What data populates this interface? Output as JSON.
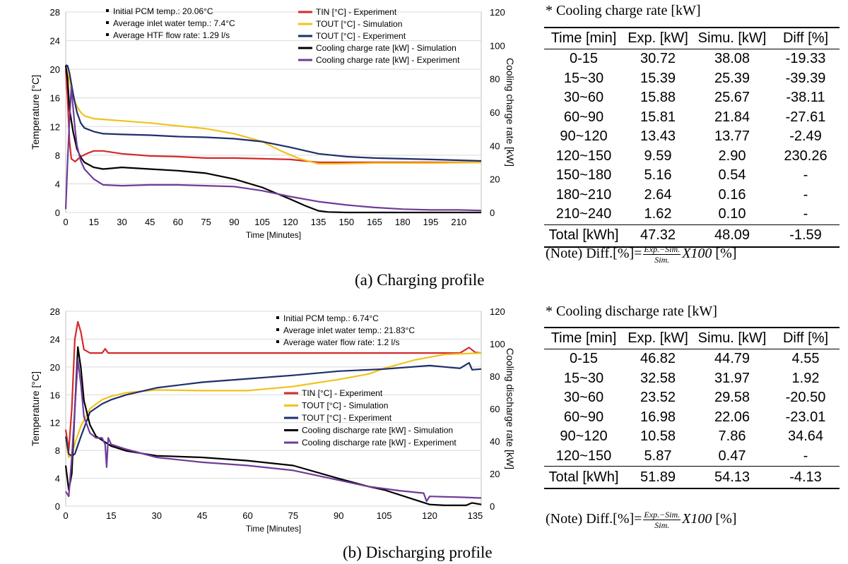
{
  "chart_data": [
    {
      "type": "line",
      "caption": "(a) Charging profile",
      "xlabel": "Time [Minutes]",
      "ylabel": "Temperature [°C]",
      "y2label": "Cooling charge rate [kW]",
      "xticks": [
        "0",
        "15",
        "30",
        "45",
        "60",
        "75",
        "90",
        "105",
        "120",
        "135",
        "150",
        "165",
        "180",
        "195",
        "210"
      ],
      "yticks": [
        "0",
        "4",
        "8",
        "12",
        "16",
        "20",
        "24",
        "28"
      ],
      "y2ticks": [
        "0",
        "20",
        "40",
        "60",
        "80",
        "100",
        "120"
      ],
      "xlim": [
        0,
        222
      ],
      "ylim": [
        0,
        28
      ],
      "y2lim": [
        0,
        120
      ],
      "info": [
        "Initial PCM temp.: 20.06°C",
        "Average inlet water temp.: 7.4°C",
        "Average HTF flow rate: 1.29 l/s"
      ],
      "series": [
        {
          "name": "TIN [°C] - Experiment",
          "color": "#d42a2a",
          "axis": "left",
          "points": [
            [
              0,
              20
            ],
            [
              1,
              16
            ],
            [
              2,
              10
            ],
            [
              3,
              7.5
            ],
            [
              5,
              7.1
            ],
            [
              8,
              7.8
            ],
            [
              12,
              8.3
            ],
            [
              15,
              8.6
            ],
            [
              20,
              8.6
            ],
            [
              25,
              8.4
            ],
            [
              30,
              8.2
            ],
            [
              45,
              7.9
            ],
            [
              60,
              7.8
            ],
            [
              75,
              7.6
            ],
            [
              90,
              7.6
            ],
            [
              105,
              7.5
            ],
            [
              120,
              7.4
            ],
            [
              135,
              7.0
            ],
            [
              150,
              7.0
            ],
            [
              165,
              7.0
            ],
            [
              180,
              7.0
            ],
            [
              195,
              7.0
            ],
            [
              210,
              7.0
            ],
            [
              222,
              7.0
            ]
          ]
        },
        {
          "name": "TOUT [°C] - Simulation",
          "color": "#f2c21b",
          "axis": "left",
          "points": [
            [
              0,
              20.4
            ],
            [
              2,
              18.5
            ],
            [
              4,
              16
            ],
            [
              6,
              14.8
            ],
            [
              8,
              14
            ],
            [
              10,
              13.5
            ],
            [
              15,
              13.1
            ],
            [
              20,
              13
            ],
            [
              30,
              12.8
            ],
            [
              45,
              12.5
            ],
            [
              60,
              12.1
            ],
            [
              75,
              11.7
            ],
            [
              90,
              11.0
            ],
            [
              105,
              9.9
            ],
            [
              115,
              8.6
            ],
            [
              125,
              7.5
            ],
            [
              135,
              6.8
            ],
            [
              145,
              6.8
            ],
            [
              165,
              6.9
            ],
            [
              195,
              6.9
            ],
            [
              222,
              7.0
            ]
          ]
        },
        {
          "name": "TOUT [°C] - Experiment",
          "color": "#1f2f6b",
          "axis": "left",
          "points": [
            [
              0,
              20.6
            ],
            [
              1,
              20.5
            ],
            [
              2,
              19.5
            ],
            [
              4,
              16.5
            ],
            [
              6,
              14
            ],
            [
              8,
              12.5
            ],
            [
              10,
              11.8
            ],
            [
              15,
              11.3
            ],
            [
              20,
              11
            ],
            [
              30,
              10.9
            ],
            [
              45,
              10.8
            ],
            [
              60,
              10.6
            ],
            [
              75,
              10.5
            ],
            [
              90,
              10.3
            ],
            [
              105,
              9.9
            ],
            [
              120,
              9.1
            ],
            [
              135,
              8.2
            ],
            [
              150,
              7.8
            ],
            [
              165,
              7.6
            ],
            [
              180,
              7.5
            ],
            [
              195,
              7.4
            ],
            [
              210,
              7.3
            ],
            [
              222,
              7.2
            ]
          ]
        },
        {
          "name": "Cooling charge rate [kW] - Simulation",
          "color": "#000000",
          "axis": "right",
          "points": [
            [
              0,
              88
            ],
            [
              1,
              80
            ],
            [
              2,
              62
            ],
            [
              4,
              48
            ],
            [
              6,
              38
            ],
            [
              8,
              33
            ],
            [
              10,
              30
            ],
            [
              15,
              27
            ],
            [
              20,
              26
            ],
            [
              30,
              27
            ],
            [
              45,
              26
            ],
            [
              60,
              25
            ],
            [
              75,
              23.5
            ],
            [
              90,
              20
            ],
            [
              105,
              15
            ],
            [
              120,
              8
            ],
            [
              128,
              4
            ],
            [
              135,
              1
            ],
            [
              140,
              0.3
            ],
            [
              150,
              0
            ],
            [
              222,
              0
            ]
          ]
        },
        {
          "name": "Cooling charge rate [kW] - Experiment",
          "color": "#6f3c99",
          "axis": "right",
          "points": [
            [
              0,
              2
            ],
            [
              1,
              30
            ],
            [
              2,
              55
            ],
            [
              3,
              75
            ],
            [
              4,
              62
            ],
            [
              5,
              50
            ],
            [
              6,
              40
            ],
            [
              8,
              31
            ],
            [
              10,
              26
            ],
            [
              15,
              20
            ],
            [
              20,
              16.5
            ],
            [
              30,
              16
            ],
            [
              45,
              16.5
            ],
            [
              60,
              16.5
            ],
            [
              75,
              16
            ],
            [
              90,
              15.5
            ],
            [
              105,
              13
            ],
            [
              120,
              9.5
            ],
            [
              135,
              6.5
            ],
            [
              150,
              4.5
            ],
            [
              165,
              3
            ],
            [
              180,
              2
            ],
            [
              195,
              1.5
            ],
            [
              210,
              1.5
            ],
            [
              222,
              1.2
            ]
          ]
        }
      ]
    },
    {
      "type": "line",
      "caption": "(b) Discharging profile",
      "xlabel": "Time [Minutes]",
      "ylabel": "Temperature [°C]",
      "y2label": "Cooling discharge rate [kW]",
      "xticks": [
        "0",
        "15",
        "30",
        "45",
        "60",
        "75",
        "90",
        "105",
        "120",
        "135"
      ],
      "yticks": [
        "0",
        "4",
        "8",
        "12",
        "16",
        "20",
        "24",
        "28"
      ],
      "y2ticks": [
        "0",
        "20",
        "40",
        "60",
        "80",
        "100",
        "120"
      ],
      "xlim": [
        0,
        137
      ],
      "ylim": [
        0,
        28
      ],
      "y2lim": [
        0,
        120
      ],
      "info": [
        "Initial PCM temp.: 6.74°C",
        "Average inlet water temp.: 21.83°C",
        "Average water flow rate: 1.2 l/s"
      ],
      "series": [
        {
          "name": "TIN [°C] - Experiment",
          "color": "#d42a2a",
          "axis": "left",
          "points": [
            [
              0,
              11
            ],
            [
              1,
              8
            ],
            [
              2,
              14
            ],
            [
              3,
              24
            ],
            [
              4,
              26.5
            ],
            [
              5,
              25
            ],
            [
              6,
              22.5
            ],
            [
              8,
              22
            ],
            [
              12,
              22
            ],
            [
              13,
              22.6
            ],
            [
              14,
              22
            ],
            [
              20,
              22
            ],
            [
              45,
              22
            ],
            [
              75,
              22
            ],
            [
              105,
              22
            ],
            [
              130,
              22
            ],
            [
              133,
              22.8
            ],
            [
              135,
              22.1
            ],
            [
              137,
              22
            ]
          ]
        },
        {
          "name": "TOUT [°C] - Simulation",
          "color": "#f2c21b",
          "axis": "left",
          "points": [
            [
              0,
              9.5
            ],
            [
              1,
              7
            ],
            [
              2,
              7.5
            ],
            [
              3,
              9
            ],
            [
              5,
              11.5
            ],
            [
              8,
              14
            ],
            [
              12,
              15.3
            ],
            [
              15,
              15.8
            ],
            [
              20,
              16.3
            ],
            [
              30,
              16.7
            ],
            [
              45,
              16.6
            ],
            [
              60,
              16.6
            ],
            [
              75,
              17.2
            ],
            [
              90,
              18.2
            ],
            [
              100,
              19
            ],
            [
              105,
              19.8
            ],
            [
              115,
              21
            ],
            [
              125,
              21.8
            ],
            [
              137,
              22
            ]
          ]
        },
        {
          "name": "TOUT [°C] - Experiment",
          "color": "#1f2f6b",
          "axis": "left",
          "points": [
            [
              0,
              10
            ],
            [
              1,
              7.5
            ],
            [
              2,
              7.2
            ],
            [
              3,
              7.5
            ],
            [
              5,
              10
            ],
            [
              8,
              13.5
            ],
            [
              12,
              14.7
            ],
            [
              15,
              15.3
            ],
            [
              20,
              16
            ],
            [
              30,
              17
            ],
            [
              45,
              17.8
            ],
            [
              60,
              18.3
            ],
            [
              75,
              18.8
            ],
            [
              90,
              19.4
            ],
            [
              105,
              19.7
            ],
            [
              120,
              20.2
            ],
            [
              130,
              19.8
            ],
            [
              133,
              20.6
            ],
            [
              134,
              19.6
            ],
            [
              137,
              19.7
            ]
          ]
        },
        {
          "name": "Cooling discharge rate [kW] - Simulation",
          "color": "#000000",
          "axis": "right",
          "points": [
            [
              0,
              25
            ],
            [
              1,
              10
            ],
            [
              2,
              20
            ],
            [
              3,
              60
            ],
            [
              4,
              98
            ],
            [
              5,
              85
            ],
            [
              6,
              65
            ],
            [
              8,
              50
            ],
            [
              10,
              43
            ],
            [
              15,
              37
            ],
            [
              20,
              34
            ],
            [
              30,
              31
            ],
            [
              45,
              30
            ],
            [
              60,
              28
            ],
            [
              75,
              25
            ],
            [
              90,
              17
            ],
            [
              100,
              12
            ],
            [
              105,
              10
            ],
            [
              115,
              4
            ],
            [
              120,
              1
            ],
            [
              125,
              0.5
            ],
            [
              132,
              0.5
            ],
            [
              134,
              2
            ],
            [
              137,
              1
            ]
          ]
        },
        {
          "name": "Cooling discharge rate [kW] - Experiment",
          "color": "#6f3c99",
          "axis": "right",
          "points": [
            [
              0,
              9
            ],
            [
              1,
              6
            ],
            [
              2,
              30
            ],
            [
              3,
              60
            ],
            [
              4,
              90
            ],
            [
              5,
              75
            ],
            [
              6,
              55
            ],
            [
              8,
              45
            ],
            [
              10,
              42
            ],
            [
              12,
              42
            ],
            [
              13,
              38
            ],
            [
              13.5,
              24
            ],
            [
              14,
              42
            ],
            [
              15,
              38
            ],
            [
              20,
              35
            ],
            [
              30,
              30
            ],
            [
              45,
              27
            ],
            [
              60,
              25
            ],
            [
              75,
              22
            ],
            [
              90,
              16
            ],
            [
              100,
              12
            ],
            [
              110,
              9.5
            ],
            [
              118,
              8
            ],
            [
              119,
              3
            ],
            [
              120,
              6
            ],
            [
              130,
              5.5
            ],
            [
              137,
              5
            ]
          ]
        }
      ]
    }
  ],
  "charge_table": {
    "title": "* Cooling charge rate [kW]",
    "headers": [
      "Time [min]",
      "Exp. [kW]",
      "Simu. [kW]",
      "Diff [%]"
    ],
    "rows": [
      [
        "0-15",
        "30.72",
        "38.08",
        "-19.33"
      ],
      [
        "15~30",
        "15.39",
        "25.39",
        "-39.39"
      ],
      [
        "30~60",
        "15.88",
        "25.67",
        "-38.11"
      ],
      [
        "60~90",
        "15.81",
        "21.84",
        "-27.61"
      ],
      [
        "90~120",
        "13.43",
        "13.77",
        "-2.49"
      ],
      [
        "120~150",
        "9.59",
        "2.90",
        "230.26"
      ],
      [
        "150~180",
        "5.16",
        "0.54",
        "-"
      ],
      [
        "180~210",
        "2.64",
        "0.16",
        "-"
      ],
      [
        "210~240",
        "1.62",
        "0.10",
        "-"
      ]
    ],
    "total": [
      "Total [kWh]",
      "47.32",
      "48.09",
      "-1.59"
    ]
  },
  "discharge_table": {
    "title": "* Cooling discharge rate [kW]",
    "headers": [
      "Time [min]",
      "Exp. [kW]",
      "Simu. [kW]",
      "Diff [%]"
    ],
    "rows": [
      [
        "0-15",
        "46.82",
        "44.79",
        "4.55"
      ],
      [
        "15~30",
        "32.58",
        "31.97",
        "1.92"
      ],
      [
        "30~60",
        "23.52",
        "29.58",
        "-20.50"
      ],
      [
        "60~90",
        "16.98",
        "22.06",
        "-23.01"
      ],
      [
        "90~120",
        "10.58",
        "7.86",
        "34.64"
      ],
      [
        "120~150",
        "5.87",
        "0.47",
        "-"
      ]
    ],
    "total": [
      "Total [kWh]",
      "51.89",
      "54.13",
      "-4.13"
    ]
  },
  "note": {
    "prefix": "(Note) Diff.[%]=",
    "numerator": "Exp.−Sim.",
    "denominator": "Sim.",
    "suffix": "X100",
    "unit": "[%]"
  }
}
